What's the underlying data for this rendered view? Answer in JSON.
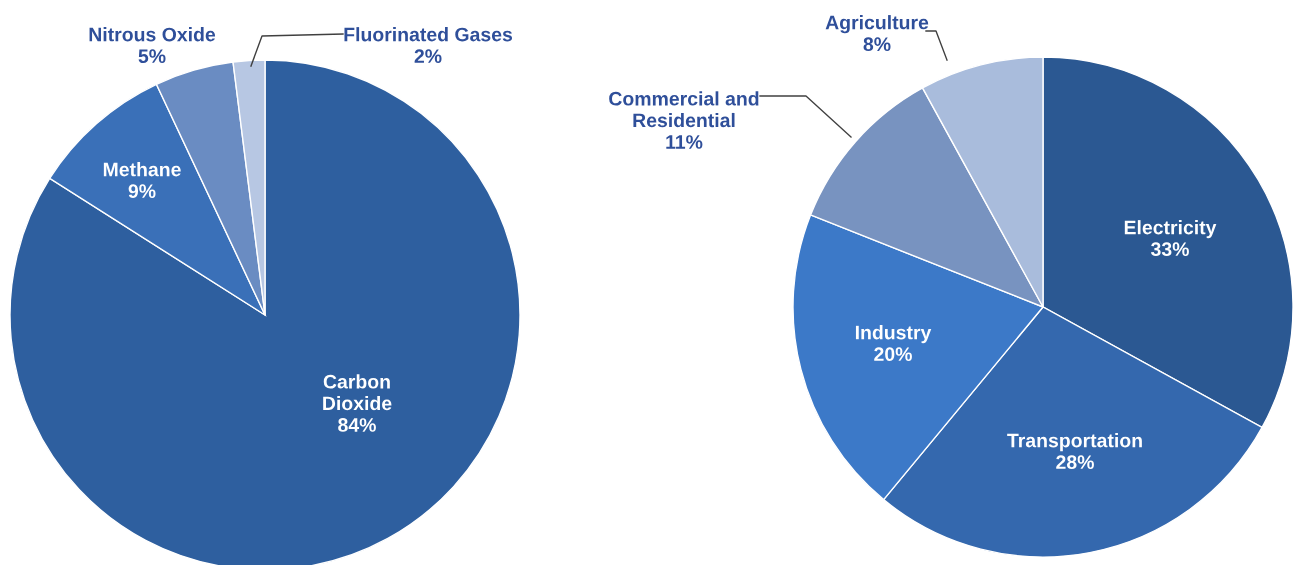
{
  "chart_data": [
    {
      "type": "pie",
      "categories": [
        "Carbon\nDioxide",
        "Methane",
        "Nitrous Oxide",
        "Fluorinated Gases"
      ],
      "values": [
        84,
        9,
        5,
        2
      ],
      "colors": [
        "#2e5f9f",
        "#3a70b8",
        "#6a8cc2",
        "#b7c7e3"
      ],
      "value_labels": [
        "84%",
        "9%",
        "5%",
        "2%"
      ]
    },
    {
      "type": "pie",
      "categories": [
        "Electricity",
        "Transportation",
        "Industry",
        "Commercial and\nResidential",
        "Agriculture"
      ],
      "values": [
        33,
        28,
        20,
        11,
        8
      ],
      "colors": [
        "#2b5892",
        "#3468ae",
        "#3c79c8",
        "#7893c0",
        "#a9bcdc"
      ],
      "value_labels": [
        "33%",
        "28%",
        "20%",
        "11%",
        "8%"
      ]
    }
  ]
}
